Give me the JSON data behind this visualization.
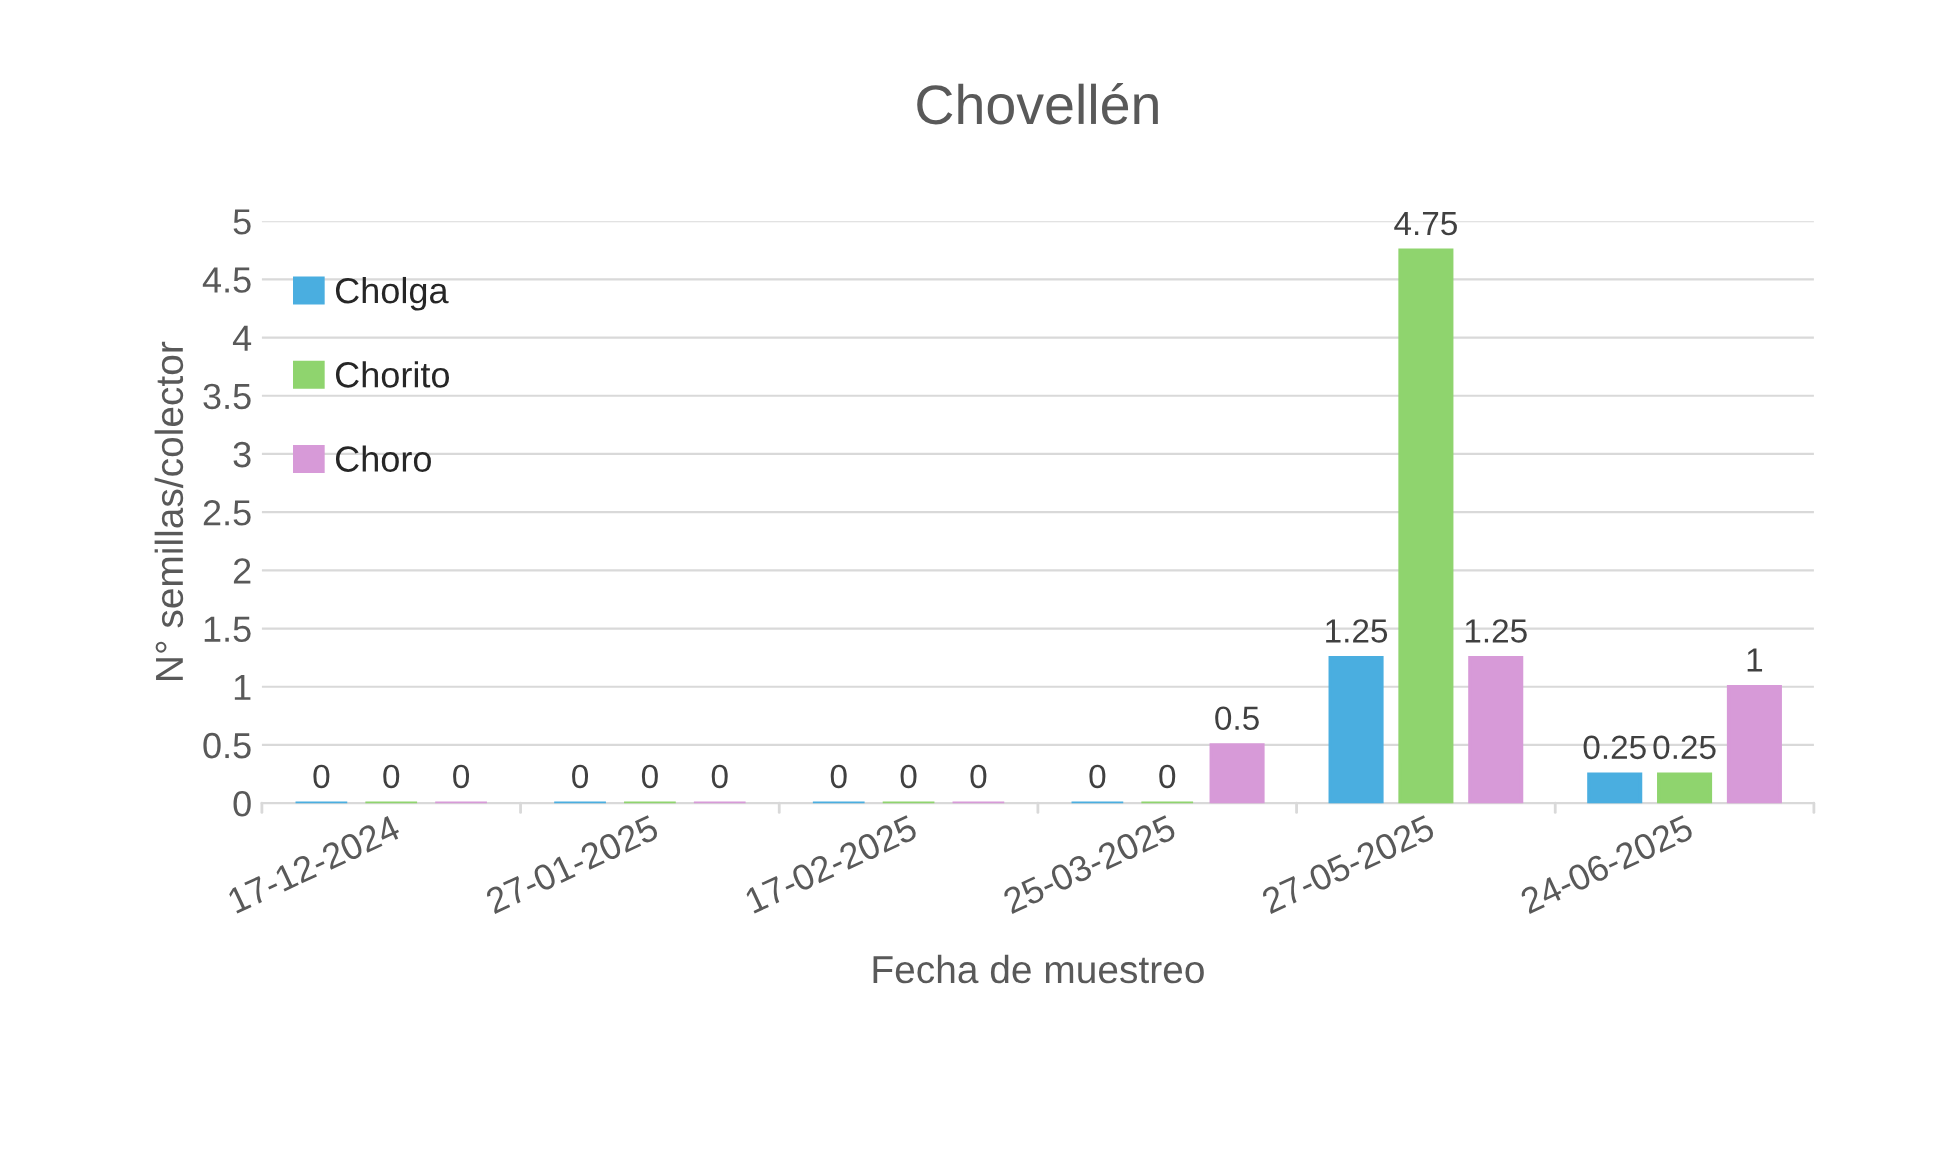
{
  "chart_data": {
    "type": "bar",
    "title": "Chovellén",
    "xlabel": "Fecha de muestreo",
    "ylabel": "N° semillas/colector",
    "categories": [
      "17-12-2024",
      "27-01-2025",
      "17-02-2025",
      "25-03-2025",
      "27-05-2025",
      "24-06-2025"
    ],
    "series": [
      {
        "name": "Cholga",
        "color": "#4aaee0",
        "values": [
          0,
          0,
          0,
          0,
          1.25,
          0.25
        ]
      },
      {
        "name": "Chorito",
        "color": "#8fd46e",
        "values": [
          0,
          0,
          0,
          0,
          4.75,
          0.25
        ]
      },
      {
        "name": "Choro",
        "color": "#d79ad8",
        "values": [
          0,
          0,
          0,
          0.5,
          1.25,
          1
        ]
      }
    ],
    "ylim": [
      0,
      5
    ],
    "yticks": [
      0,
      0.5,
      1,
      1.5,
      2,
      2.5,
      3,
      3.5,
      4,
      4.5,
      5
    ],
    "grid": "y",
    "legend": "top left",
    "data_labels": true
  }
}
